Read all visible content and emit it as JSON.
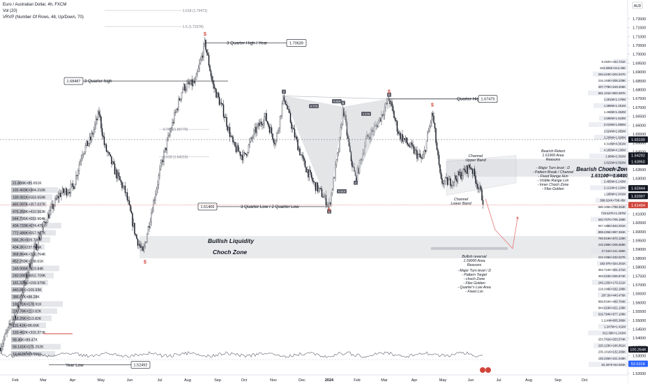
{
  "header": {
    "title": "Euro / Australian Dollar, 4h, FXCM",
    "indicator_1": "Vol (20)",
    "indicator_2": "VRVP (Number Of Rows, 48, Up/Down, 70)"
  },
  "colors": {
    "candle": "#131722",
    "hline": "#d1453b",
    "zone": "#cfd2d8",
    "label_bg": "#2a2e39",
    "price_badge": "#131722",
    "current_price": "#d1453b",
    "path_line": "#e57373",
    "accent_blue": "#2962ff",
    "harmonic": "#b2b5be",
    "text": "#131722"
  },
  "chart_data": {
    "type": "candlestick",
    "symbol": "EURAUD",
    "timeframe": "4h",
    "currency": "AUD",
    "y_axis": {
      "ticks": [
        "1.72000",
        "1.71500",
        "1.71000",
        "1.70500",
        "1.70000",
        "1.69500",
        "1.69000",
        "1.68500",
        "1.68000",
        "1.67500",
        "1.67000",
        "1.66500",
        "1.66000",
        "1.65500",
        "1.65000",
        "1.64500",
        "1.64000",
        "1.63500",
        "1.63000",
        "1.62500",
        "1.62000",
        "1.61500",
        "1.61000",
        "1.60500",
        "1.60000",
        "1.59500",
        "1.59000",
        "1.58500",
        "1.58000",
        "1.57500",
        "1.57000",
        "1.56500",
        "1.56000",
        "1.55500",
        "1.55000",
        "1.54500",
        "1.54000",
        "1.53500",
        "1.53000",
        "1.52500",
        "1.52000"
      ],
      "range": [
        1.52,
        1.7235
      ]
    },
    "x_axis": {
      "ticks": [
        "Feb",
        "Mar",
        "Apr",
        "May",
        "Jun",
        "Jul",
        "Aug",
        "Sep",
        "Oct",
        "Nov",
        "Dec",
        "2024",
        "Feb",
        "Mar",
        "Apr",
        "May",
        "Jun",
        "Jul",
        "Aug",
        "Sep",
        "Oct"
      ]
    },
    "price_labels": [
      {
        "text": "1.65190",
        "y": 1.6519,
        "style": "dark"
      },
      {
        "text": "1.64292",
        "y": 1.64292,
        "style": "dark"
      },
      {
        "text": "1.63950",
        "y": 1.6395,
        "style": "dark"
      },
      {
        "text": "1.62444",
        "y": 1.62444,
        "style": "dark"
      },
      {
        "text": "1.62007",
        "y": 1.62007,
        "style": "dark"
      },
      {
        "text": "1.61494",
        "y": 1.61494,
        "style": "red"
      },
      {
        "text": "100.264K",
        "y": 1.5336,
        "style": "dark"
      },
      {
        "text": "53.531K",
        "y": 1.5255,
        "style": "blue"
      }
    ],
    "volume_profile_labels": [
      "8.492K×444.721K",
      "264.505K×214.25K",
      "294.424K×202.947K",
      "216.193K×206.229K",
      "207.779K×229.205K",
      "691.101K×800.087K",
      "1.261M×1.179M",
      "1.389M×1.251M",
      "1.456M×1.462M",
      "1.596M×1.623M",
      "2.019M×1.896M",
      "2.024M×1.955M",
      "2.208M×1.928M",
      "4.318M×4.361M",
      "4.185M×4.136M",
      "2.98M×2.302M",
      "2.622M×2.552M",
      "2.52M×2.388M",
      "2.398M×2.266M",
      "2.485M×2.143M",
      "2.121M×2.129M",
      "1.186M×1.041M",
      "398.624K×798.45K",
      "580.105K×798.453K",
      "719.627K×1.297M",
      "640.707K×706.158K",
      "947.185K×542.201K",
      "899.225K×997.384K",
      "780.819K×672.129K",
      "232.298K×205.569K",
      "17.51K×121.385K",
      "222.426K×232.027K",
      "182.97K×324.201K",
      "363.724K×301.471K",
      "360.224K×325.874K",
      "246.125K×179.221K",
      "218.299K×182.188K",
      "297.5K×440.476K",
      "899.834K×400.764K",
      "844.424K×421.138K",
      "516.794K×577.108K",
      "1.114M×605.386K",
      "1.247M×1.411M",
      "912.69K×1.241M",
      "253.741K×253.574K",
      "220.123K×196.951K",
      "235.101K×132.286K",
      "145.226K×221.048K",
      "62.267K×64.094K"
    ],
    "left_profile_labels": [
      "21.888K×85.651K",
      "192.403K×364.216K",
      "189.981K×583.659K",
      "465.997K×357.037K",
      "476.358K×410.563K",
      "644.795K×693.964K",
      "434.733K×674.476K",
      "772.486K×557.967K",
      "566.2K×509.706K",
      "434.2K×237.089K",
      "368.864K×766.764K",
      "452.259K×188.61K",
      "249.906K×419.84K",
      "240.096K×652.709K",
      "181.328K×159.975K",
      "440.85K×109.93K",
      "386.87K×88.28K",
      "186.91K×178.91K",
      "207.76K×113.82K",
      "223.25K×113.82K",
      "116.41K×88.66K",
      "193.462K×316.372K",
      "98.46K×89.47K",
      "58.141K×175.252K",
      "10.661K×69.995K"
    ],
    "annotations": [
      {
        "text": "1.618 (1.73471)"
      },
      {
        "text": "1.5 (1.72278)"
      },
      {
        "text": "3 Quarter High / Year"
      },
      {
        "text": "1.70639"
      },
      {
        "text": "1.68487"
      },
      {
        "text": "3 Quarter high"
      },
      {
        "text": "0.786 (1.65770)"
      },
      {
        "text": "0.618 (1.64215)"
      },
      {
        "text": "1.61406"
      },
      {
        "text": "3 Quarter Low / 2 Quarter Low"
      },
      {
        "text": "Quarter High"
      },
      {
        "text": "1.67475"
      },
      {
        "text": "Bullish Liquidity"
      },
      {
        "text": "Choch Zone"
      },
      {
        "text": "Year Low"
      },
      {
        "text": "1.52492"
      },
      {
        "text": "Channel"
      },
      {
        "text": "Upper Band"
      },
      {
        "text": "Lower Band"
      },
      {
        "text": "Bearish Retest"
      },
      {
        "text": "1.61900 Area"
      },
      {
        "text": "Reasons"
      },
      {
        "text": "- Major Turn level : D"
      },
      {
        "text": "- Pattern Break / Channel"
      },
      {
        "text": "- Fixed Range Hvn"
      },
      {
        "text": "- Visible Range Lvn"
      },
      {
        "text": "- Inner Choch Zone"
      },
      {
        "text": "- Fibo Golden"
      },
      {
        "text": "Bearish Choch Zone"
      },
      {
        "text": "1.63100 - 1.64100"
      },
      {
        "text": "Bullish reversal"
      },
      {
        "text": "1.59000 Area"
      },
      {
        "text": "Reasons"
      },
      {
        "text": "- Major Turn level / D"
      },
      {
        "text": "- Pattern Target"
      },
      {
        "text": "- choch Zone"
      },
      {
        "text": "- Fibo Golden"
      },
      {
        "text": "- Quarter's Low Area"
      },
      {
        "text": "- Fixed Lvn"
      }
    ],
    "harmonic_pattern": {
      "points": [
        {
          "label": "X",
          "price": 1.6765
        },
        {
          "label": "A",
          "price": 1.6145
        },
        {
          "label": "B",
          "price": 1.6702
        },
        {
          "label": "C",
          "price": 1.6295
        },
        {
          "label": "D",
          "price": 1.6748
        }
      ],
      "ratios": [
        "0.779",
        "0.839",
        "1.176",
        "0.619"
      ]
    },
    "zones": [
      {
        "name": "Bullish Liquidity Choch Zone",
        "from": 1.585,
        "to": 1.5975
      },
      {
        "name": "Bearish Choch Zone",
        "from": 1.631,
        "to": 1.641
      }
    ],
    "markers": [
      "$",
      "$",
      "$",
      "$",
      "$"
    ],
    "projection": [
      1.6185,
      1.601,
      1.5905,
      1.6075
    ]
  }
}
